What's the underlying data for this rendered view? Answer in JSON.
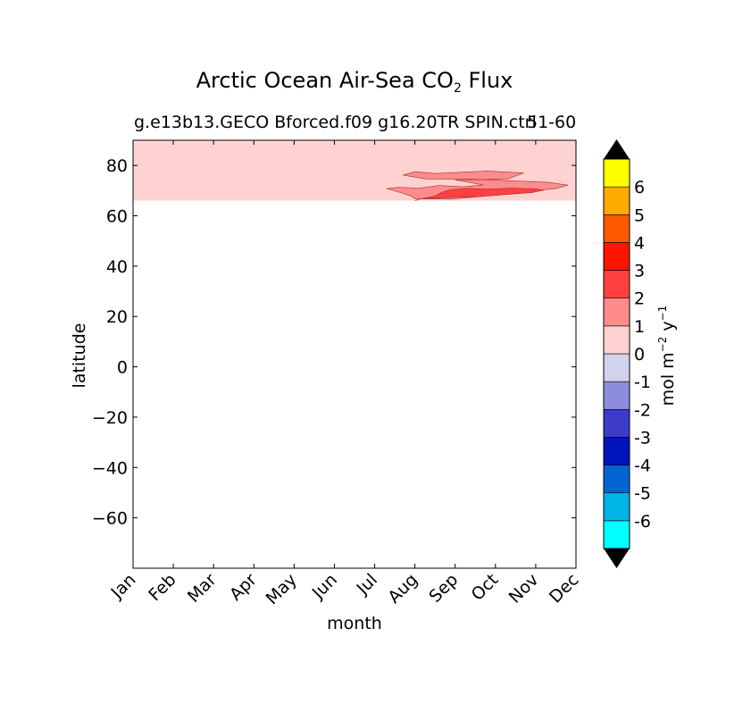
{
  "chart_data": {
    "type": "heatmap",
    "title": "Arctic Ocean Air-Sea CO",
    "title_subscript": "2",
    "title_suffix": "Flux",
    "subtitle": "g.e13b13.GECO Bforced.f09 g16.20TR SPIN.ctrl",
    "subtitle_right": "51-60",
    "xlabel": "month",
    "ylabel": "latitude",
    "x_categories": [
      "Jan",
      "Feb",
      "Mar",
      "Apr",
      "May",
      "Jun",
      "Jul",
      "Aug",
      "Sep",
      "Oct",
      "Nov",
      "Dec"
    ],
    "ylim": [
      -80,
      90
    ],
    "y_ticks": [
      80,
      60,
      40,
      20,
      0,
      -20,
      -40,
      -60
    ],
    "y_tick_labels": [
      "80",
      "60",
      "40",
      "20",
      "0",
      "−20",
      "−40",
      "−60"
    ],
    "data_lat_range": [
      66,
      90
    ],
    "background_level": "0 to 1",
    "regions": [
      {
        "level": "1 to 2",
        "color": "#ff8c8c",
        "outline": [
          [
            7.6,
            72
          ],
          [
            8.2,
            71.5
          ],
          [
            8.7,
            72.3
          ],
          [
            8.0,
            74.2
          ],
          [
            9.3,
            74.6
          ],
          [
            9.7,
            77
          ],
          [
            8.8,
            77.8
          ],
          [
            7.5,
            76.8
          ],
          [
            7.0,
            77.5
          ],
          [
            6.7,
            76.2
          ],
          [
            7.3,
            74.6
          ],
          [
            8.5,
            74.5
          ],
          [
            9.5,
            73.8
          ],
          [
            10.3,
            73.3
          ],
          [
            10.8,
            72.2
          ],
          [
            10.5,
            70.8
          ],
          [
            9.8,
            69.7
          ],
          [
            9.2,
            68.8
          ],
          [
            8.7,
            67.8
          ],
          [
            7.9,
            66.6
          ],
          [
            7.0,
            66.8
          ],
          [
            6.9,
            67.9
          ],
          [
            6.6,
            69.4
          ],
          [
            6.3,
            70.8
          ],
          [
            6.6,
            71.3
          ],
          [
            7.1,
            71.0
          ]
        ]
      },
      {
        "level": "2 to 3",
        "color": "#ff4040",
        "outline": [
          [
            7.0,
            66.0
          ],
          [
            7.1,
            66.6
          ],
          [
            7.8,
            67.2
          ],
          [
            8.6,
            67.6
          ],
          [
            9.2,
            68.4
          ],
          [
            9.9,
            69.2
          ],
          [
            10.2,
            70.2
          ],
          [
            10.0,
            70.7
          ],
          [
            9.4,
            71.0
          ],
          [
            8.8,
            70.6
          ],
          [
            8.3,
            70.9
          ],
          [
            7.9,
            70.4
          ],
          [
            7.7,
            69.5
          ],
          [
            7.5,
            67.9
          ],
          [
            7.1,
            66.5
          ],
          [
            7.0,
            66.0
          ]
        ]
      }
    ],
    "colorbar": {
      "label": "mol m",
      "label_sup1": "−2",
      "label_mid": "y",
      "label_sup2": "−1",
      "extend": "both",
      "extend_colors": {
        "low": "#000000",
        "high": "#000000"
      },
      "levels": [
        {
          "color": "#00ffff"
        },
        {
          "color": "#00b4e6"
        },
        {
          "color": "#0064d2"
        },
        {
          "color": "#0014bd"
        },
        {
          "color": "#3c3cc8"
        },
        {
          "color": "#8c8cdc"
        },
        {
          "color": "#d2d2ee"
        },
        {
          "color": "#ffd2d2"
        },
        {
          "color": "#ff8c8c"
        },
        {
          "color": "#ff4040"
        },
        {
          "color": "#ff1400"
        },
        {
          "color": "#ff5a00"
        },
        {
          "color": "#ffaa00"
        },
        {
          "color": "#ffff00"
        }
      ],
      "tick_labels": [
        "-6",
        "-5",
        "-4",
        "-3",
        "-2",
        "-1",
        "0",
        "1",
        "2",
        "3",
        "4",
        "5",
        "6"
      ]
    }
  }
}
